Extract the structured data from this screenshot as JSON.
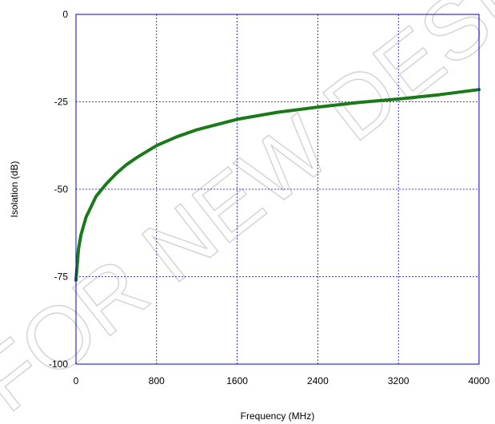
{
  "chart_data": {
    "type": "line",
    "title": "",
    "xlabel": "Frequency (MHz)",
    "ylabel": "Isolation (dB)",
    "xlim": [
      0,
      4000
    ],
    "ylim": [
      -100,
      0
    ],
    "xticks": [
      0,
      800,
      1600,
      2400,
      3200,
      4000
    ],
    "yticks": [
      0,
      -25,
      -50,
      -75,
      -100
    ],
    "xtick_labels": [
      "0",
      "800",
      "1600",
      "2400",
      "3200",
      "4000"
    ],
    "ytick_labels": [
      "0",
      "-25",
      "-50",
      "-75",
      "-100"
    ],
    "grid": true,
    "legend": "none",
    "series": [
      {
        "color": "#1a7a1a",
        "x": [
          0,
          25,
          50,
          100,
          150,
          200,
          300,
          400,
          500,
          600,
          800,
          1000,
          1200,
          1600,
          2000,
          2400,
          2800,
          3200,
          3600,
          4000
        ],
        "y": [
          -76,
          -67,
          -63,
          -58,
          -55,
          -52,
          -48.5,
          -45.5,
          -43,
          -41,
          -37.5,
          -35,
          -33,
          -30,
          -28,
          -26.5,
          -25.2,
          -24.2,
          -23,
          -21.5
        ]
      }
    ]
  },
  "watermark": "FOR NEW DESIGNS",
  "colors": {
    "frame": "#0000cc",
    "grid": "#0000cc",
    "series": "#1a7a1a"
  }
}
